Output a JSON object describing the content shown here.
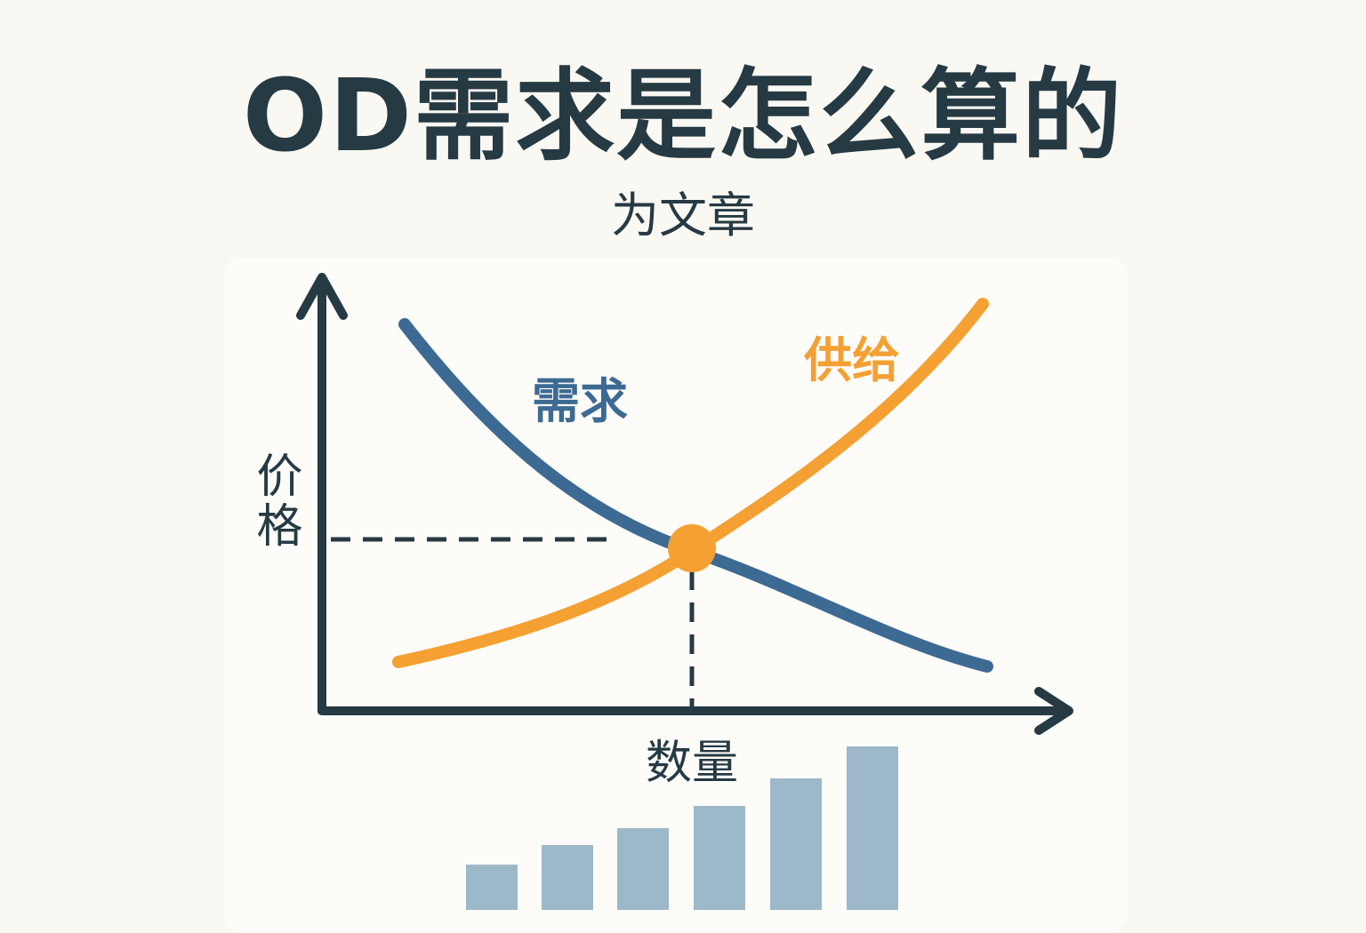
{
  "header": {
    "title": "OD需求是怎么算的",
    "subtitle": "为文章"
  },
  "diagram": {
    "demand_label": "需求",
    "supply_label": "供给",
    "y_axis_label": "价格",
    "x_axis_label": "数量"
  }
}
